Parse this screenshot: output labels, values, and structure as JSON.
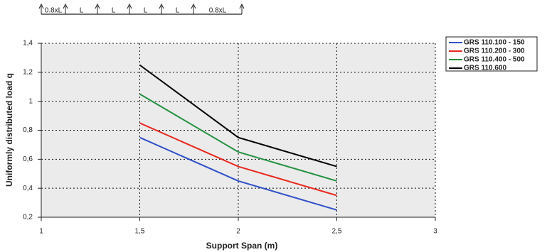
{
  "beam_diagram": {
    "labels": [
      "0.8xL",
      "L",
      "L",
      "L",
      "L",
      "0.8xL"
    ]
  },
  "chart_data": {
    "type": "line",
    "x_label": "Support Span (m)",
    "y_label": "Uniformly distributed load q",
    "x": [
      1.5,
      2,
      2.5
    ],
    "series": [
      {
        "name": "GRS 110.100 - 150",
        "color": "#3050c8",
        "values": [
          0.75,
          0.45,
          0.25
        ]
      },
      {
        "name": "GRS 110.200 - 300",
        "color": "#e8281e",
        "values": [
          0.85,
          0.55,
          0.35
        ]
      },
      {
        "name": "GRS 110.400 - 500",
        "color": "#239140",
        "values": [
          1.05,
          0.65,
          0.45
        ]
      },
      {
        "name": "GRS 110.600",
        "color": "#000000",
        "values": [
          1.25,
          0.75,
          0.55
        ]
      }
    ],
    "xlim": [
      1,
      3
    ],
    "xticks": [
      1,
      {
        "value": 1.5,
        "label": "1,5"
      },
      2,
      {
        "value": 2.5,
        "label": "2,5"
      },
      3
    ],
    "ylim": [
      0.2,
      1.4
    ],
    "yticks": [
      {
        "value": 0.2,
        "label": "0,2"
      },
      {
        "value": 0.4,
        "label": "0,4"
      },
      {
        "value": 0.6,
        "label": "0,6"
      },
      {
        "value": 0.8,
        "label": "0,8"
      },
      1,
      {
        "value": 1.2,
        "label": "1,2"
      },
      {
        "value": 1.4,
        "label": "1,4"
      }
    ],
    "grid": true,
    "legend": "right"
  }
}
